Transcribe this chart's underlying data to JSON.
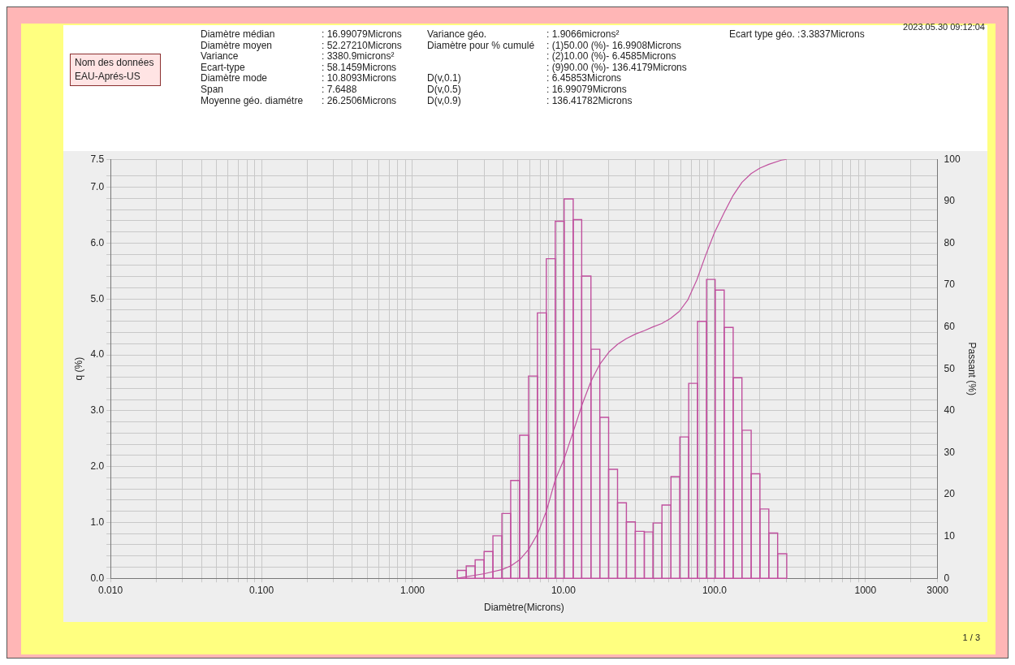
{
  "chart_data": {
    "type": "histogram",
    "xlabel": "Diamètre(Microns)",
    "ylabel": "q (%)",
    "y2label": "Passant (%)",
    "log": "x",
    "grid": true,
    "legend": false,
    "xlim": [
      0.01,
      3000
    ],
    "xticks": [
      {
        "value": 0.01,
        "label": "0.010"
      },
      {
        "value": 0.02,
        "label": null
      },
      {
        "value": 0.03,
        "label": null
      },
      {
        "value": 0.04,
        "label": null
      },
      {
        "value": 0.05,
        "label": null
      },
      {
        "value": 0.06,
        "label": null
      },
      {
        "value": 0.07,
        "label": null
      },
      {
        "value": 0.08,
        "label": null
      },
      {
        "value": 0.09,
        "label": null
      },
      {
        "value": 0.1,
        "label": "0.100"
      },
      {
        "value": 0.2,
        "label": null
      },
      {
        "value": 0.3,
        "label": null
      },
      {
        "value": 0.4,
        "label": null
      },
      {
        "value": 0.5,
        "label": null
      },
      {
        "value": 0.6,
        "label": null
      },
      {
        "value": 0.7,
        "label": null
      },
      {
        "value": 0.8,
        "label": null
      },
      {
        "value": 0.9,
        "label": null
      },
      {
        "value": 1,
        "label": "1.000"
      },
      {
        "value": 2,
        "label": null
      },
      {
        "value": 3,
        "label": null
      },
      {
        "value": 4,
        "label": null
      },
      {
        "value": 5,
        "label": null
      },
      {
        "value": 6,
        "label": null
      },
      {
        "value": 7,
        "label": null
      },
      {
        "value": 8,
        "label": null
      },
      {
        "value": 9,
        "label": null
      },
      {
        "value": 10,
        "label": "10.00"
      },
      {
        "value": 20,
        "label": null
      },
      {
        "value": 30,
        "label": null
      },
      {
        "value": 40,
        "label": null
      },
      {
        "value": 50,
        "label": null
      },
      {
        "value": 60,
        "label": null
      },
      {
        "value": 70,
        "label": null
      },
      {
        "value": 80,
        "label": null
      },
      {
        "value": 90,
        "label": null
      },
      {
        "value": 100,
        "label": "100.0"
      },
      {
        "value": 200,
        "label": null
      },
      {
        "value": 300,
        "label": null
      },
      {
        "value": 400,
        "label": null
      },
      {
        "value": 500,
        "label": null
      },
      {
        "value": 600,
        "label": null
      },
      {
        "value": 700,
        "label": null
      },
      {
        "value": 800,
        "label": null
      },
      {
        "value": 900,
        "label": null
      },
      {
        "value": 1000,
        "label": "1000"
      },
      {
        "value": 2000,
        "label": null
      },
      {
        "value": 3000,
        "label": "3000"
      }
    ],
    "ylim": [
      0,
      7.5
    ],
    "yticks": [
      {
        "value": 0,
        "label": "0.0"
      },
      {
        "value": 0.2,
        "label": null
      },
      {
        "value": 0.4,
        "label": null
      },
      {
        "value": 0.6,
        "label": null
      },
      {
        "value": 0.8,
        "label": null
      },
      {
        "value": 1,
        "label": "1.0"
      },
      {
        "value": 1.2,
        "label": null
      },
      {
        "value": 1.4,
        "label": null
      },
      {
        "value": 1.6,
        "label": null
      },
      {
        "value": 1.8,
        "label": null
      },
      {
        "value": 2,
        "label": "2.0"
      },
      {
        "value": 2.2,
        "label": null
      },
      {
        "value": 2.4,
        "label": null
      },
      {
        "value": 2.6,
        "label": null
      },
      {
        "value": 2.8,
        "label": null
      },
      {
        "value": 3,
        "label": "3.0"
      },
      {
        "value": 3.2,
        "label": null
      },
      {
        "value": 3.4,
        "label": null
      },
      {
        "value": 3.6,
        "label": null
      },
      {
        "value": 3.8,
        "label": null
      },
      {
        "value": 4,
        "label": "4.0"
      },
      {
        "value": 4.2,
        "label": null
      },
      {
        "value": 4.4,
        "label": null
      },
      {
        "value": 4.6,
        "label": null
      },
      {
        "value": 4.8,
        "label": null
      },
      {
        "value": 5,
        "label": "5.0"
      },
      {
        "value": 5.2,
        "label": null
      },
      {
        "value": 5.4,
        "label": null
      },
      {
        "value": 5.6,
        "label": null
      },
      {
        "value": 5.8,
        "label": null
      },
      {
        "value": 6,
        "label": "6.0"
      },
      {
        "value": 6.2,
        "label": null
      },
      {
        "value": 6.4,
        "label": null
      },
      {
        "value": 6.6,
        "label": null
      },
      {
        "value": 6.8,
        "label": null
      },
      {
        "value": 7,
        "label": "7.0"
      },
      {
        "value": 7.2,
        "label": null
      },
      {
        "value": 7.5,
        "label": "7.5"
      }
    ],
    "y2lim": [
      0,
      100
    ],
    "y2ticks": [
      0,
      10,
      20,
      30,
      40,
      50,
      60,
      70,
      80,
      90,
      100
    ],
    "series": [
      {
        "color": "#c0509e",
        "bins": [
          1.98,
          2.27,
          2.6,
          2.98,
          3.41,
          3.91,
          4.47,
          5.12,
          5.87,
          6.72,
          7.7,
          8.82,
          10.1,
          11.6,
          13.2,
          15.2,
          17.4,
          19.9,
          22.8,
          26.1,
          29.9,
          34.3,
          39.2,
          44.9,
          51.5,
          59,
          67.5,
          77.3,
          88.6,
          101,
          116,
          133,
          152,
          175,
          200,
          229,
          262,
          301
        ],
        "values": [
          0.14,
          0.22,
          0.33,
          0.48,
          0.76,
          1.16,
          1.75,
          2.56,
          3.62,
          4.75,
          5.72,
          6.39,
          6.79,
          6.42,
          5.41,
          4.1,
          2.88,
          1.95,
          1.35,
          1.01,
          0.84,
          0.83,
          0.99,
          1.31,
          1.82,
          2.53,
          3.49,
          4.6,
          5.35,
          5.16,
          4.49,
          3.59,
          2.65,
          1.87,
          1.24,
          0.81,
          0.44
        ]
      },
      {
        "type": "line",
        "axis": "y2",
        "color": "#c0509e",
        "marker": "none",
        "x": [
          1.98,
          3,
          3.93,
          4.5,
          5.16,
          5.88,
          6.76,
          7.73,
          8.81,
          10.1,
          11.6,
          13.3,
          15.2,
          17.4,
          20,
          22.9,
          26.1,
          30,
          34.3,
          39.1,
          44.7,
          51.1,
          58.5,
          66.7,
          76.4,
          87.4,
          100,
          116,
          133,
          152,
          175,
          200,
          229,
          277,
          301
        ],
        "values": [
          0,
          1.1,
          2.1,
          3,
          4.5,
          6.9,
          10.7,
          16.2,
          23.4,
          28.5,
          35,
          41.5,
          47,
          51.1,
          54,
          55.9,
          57.2,
          58.3,
          59.1,
          60,
          60.8,
          62,
          63.7,
          66.5,
          71.2,
          77.1,
          82.5,
          87.3,
          91.4,
          94.5,
          96.6,
          97.9,
          98.8,
          99.8,
          100
        ]
      }
    ],
    "annotations": [
      "2023.05.30 09:12:04",
      "Nom des données",
      "EAU-Aprés-US",
      "Diamètre médian",
      ": 16.99079Microns",
      "Variance géo.",
      ": 1.9066microns²",
      "Ecart type géo. :",
      "3.3837Microns",
      "Diamètre moyen",
      ": 52.27210Microns",
      "Diamètre pour % cumulé",
      ": (1)50.00 (%)- 16.9908Microns",
      "Variance",
      ": 3380.9microns²",
      ": (2)10.00 (%)- 6.4585Microns",
      "Ecart-type",
      ": 58.1459Microns",
      ": (9)90.00 (%)- 136.4179Microns",
      "Diamètre mode",
      ": 10.8093Microns",
      "D(v,0.1)",
      ": 6.45853Microns",
      "Span",
      ": 7.6488",
      "D(v,0.5)",
      ": 16.99079Microns",
      "Moyenne géo. diamétre",
      ": 26.2506Microns",
      "D(v,0.9)",
      ": 136.41782Microns",
      "1 / 3"
    ]
  }
}
